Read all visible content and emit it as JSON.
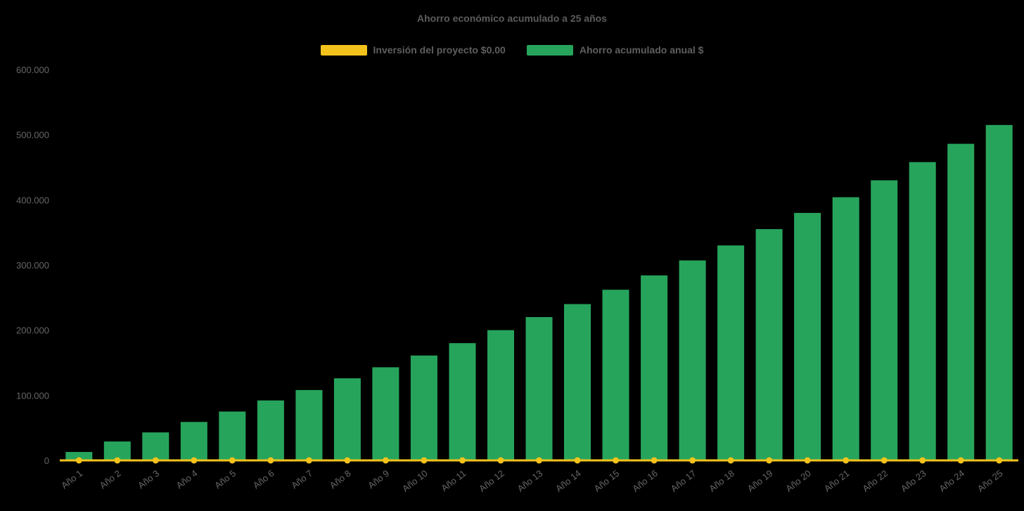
{
  "chart": {
    "title": "Ahorro económico acumulado a 25 años"
  },
  "chart_data": {
    "type": "bar",
    "title": "Ahorro económico acumulado a 25 años",
    "categories": [
      "Año 1",
      "Año 2",
      "Año 3",
      "Año 4",
      "Año 5",
      "Año 6",
      "Año 7",
      "Año 8",
      "Año 9",
      "Año 10",
      "Año 11",
      "Año 12",
      "Año 13",
      "Año 14",
      "Año 15",
      "Año 16",
      "Año 17",
      "Año 18",
      "Año 19",
      "Año 20",
      "Año 21",
      "Año 22",
      "Año 23",
      "Año 24",
      "Año 25"
    ],
    "series": [
      {
        "name": "Inversión del proyecto $0.00",
        "type": "line",
        "color": "#f3c31c",
        "values": [
          0,
          0,
          0,
          0,
          0,
          0,
          0,
          0,
          0,
          0,
          0,
          0,
          0,
          0,
          0,
          0,
          0,
          0,
          0,
          0,
          0,
          0,
          0,
          0,
          0
        ]
      },
      {
        "name": "Ahorro acumulado anual $",
        "type": "bar",
        "color": "#27a45c",
        "values": [
          13000,
          29000,
          43000,
          59000,
          75000,
          92000,
          108000,
          126000,
          143000,
          161000,
          180000,
          200000,
          220000,
          240000,
          262000,
          284000,
          307000,
          330000,
          355000,
          380000,
          404000,
          430000,
          458000,
          486000,
          515000
        ]
      }
    ],
    "ylim": [
      0,
      600000
    ],
    "yticks": [
      0,
      100000,
      200000,
      300000,
      400000,
      500000,
      600000
    ],
    "ytick_labels": [
      "0",
      "100.000",
      "200.000",
      "300.000",
      "400.000",
      "500.000",
      "600.000"
    ],
    "xlabel": "",
    "ylabel": "",
    "grid": false,
    "legend_position": "top",
    "x_label_rotation": -38,
    "background": "#000000",
    "text_color": "#666666"
  }
}
